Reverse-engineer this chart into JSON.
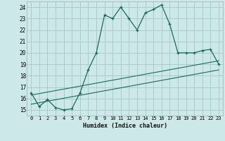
{
  "xlabel": "Humidex (Indice chaleur)",
  "bg_color": "#cce8e8",
  "grid_color": "#aacccc",
  "line_color": "#1a6b5a",
  "xlim": [
    -0.5,
    23.5
  ],
  "ylim": [
    14.5,
    24.5
  ],
  "xticks": [
    0,
    1,
    2,
    3,
    4,
    5,
    6,
    7,
    8,
    9,
    10,
    11,
    12,
    13,
    14,
    15,
    16,
    17,
    18,
    19,
    20,
    21,
    22,
    23
  ],
  "yticks": [
    15,
    16,
    17,
    18,
    19,
    20,
    21,
    22,
    23,
    24
  ],
  "main_x": [
    0,
    1,
    2,
    3,
    4,
    5,
    6,
    7,
    8,
    9,
    10,
    11,
    12,
    13,
    14,
    15,
    16,
    17,
    18,
    19,
    20,
    21,
    22,
    23
  ],
  "main_y": [
    16.5,
    15.3,
    15.9,
    15.2,
    15.0,
    15.1,
    16.5,
    18.5,
    20.0,
    23.3,
    23.0,
    24.0,
    23.0,
    22.0,
    23.5,
    23.8,
    24.2,
    22.5,
    20.0,
    20.0,
    20.0,
    20.2,
    20.3,
    19.0
  ],
  "line1_x": [
    0,
    23
  ],
  "line1_y": [
    15.5,
    18.5
  ],
  "line2_x": [
    0,
    23
  ],
  "line2_y": [
    16.3,
    19.3
  ]
}
